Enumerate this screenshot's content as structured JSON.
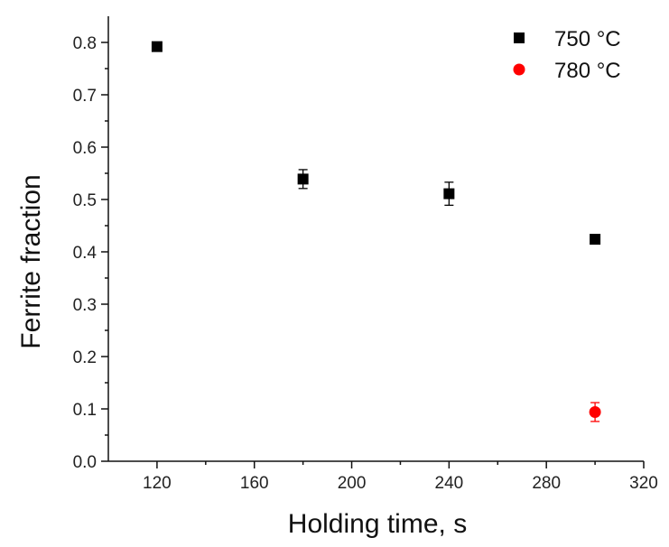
{
  "chart_data": {
    "type": "scatter",
    "xlabel": "Holding time, s",
    "ylabel": "Ferrite fraction",
    "xlim": [
      100,
      320
    ],
    "ylim": [
      0.0,
      0.85
    ],
    "x_ticks": [
      120,
      160,
      200,
      240,
      280,
      320
    ],
    "x_minor_ticks": [
      140,
      180,
      220,
      260,
      300
    ],
    "y_ticks": [
      0.0,
      0.1,
      0.2,
      0.3,
      0.4,
      0.5,
      0.6,
      0.7,
      0.8
    ],
    "y_tick_labels": [
      "0.0",
      "0.1",
      "0.2",
      "0.3",
      "0.4",
      "0.5",
      "0.6",
      "0.7",
      "0.8"
    ],
    "y_minor_ticks": [
      0.05,
      0.15,
      0.25,
      0.35,
      0.45,
      0.55,
      0.65,
      0.75
    ],
    "grid": false,
    "legend_position": "top-right",
    "series": [
      {
        "name": "750 °C",
        "marker": "square",
        "color": "#000000",
        "points": [
          {
            "x": 120,
            "y": 0.792,
            "err": 0.008
          },
          {
            "x": 180,
            "y": 0.539,
            "err": 0.018
          },
          {
            "x": 240,
            "y": 0.511,
            "err": 0.022
          },
          {
            "x": 300,
            "y": 0.424,
            "err": 0.008
          }
        ]
      },
      {
        "name": "780 °C",
        "marker": "circle",
        "color": "#ff0000",
        "points": [
          {
            "x": 300,
            "y": 0.094,
            "err": 0.018
          }
        ]
      }
    ]
  }
}
